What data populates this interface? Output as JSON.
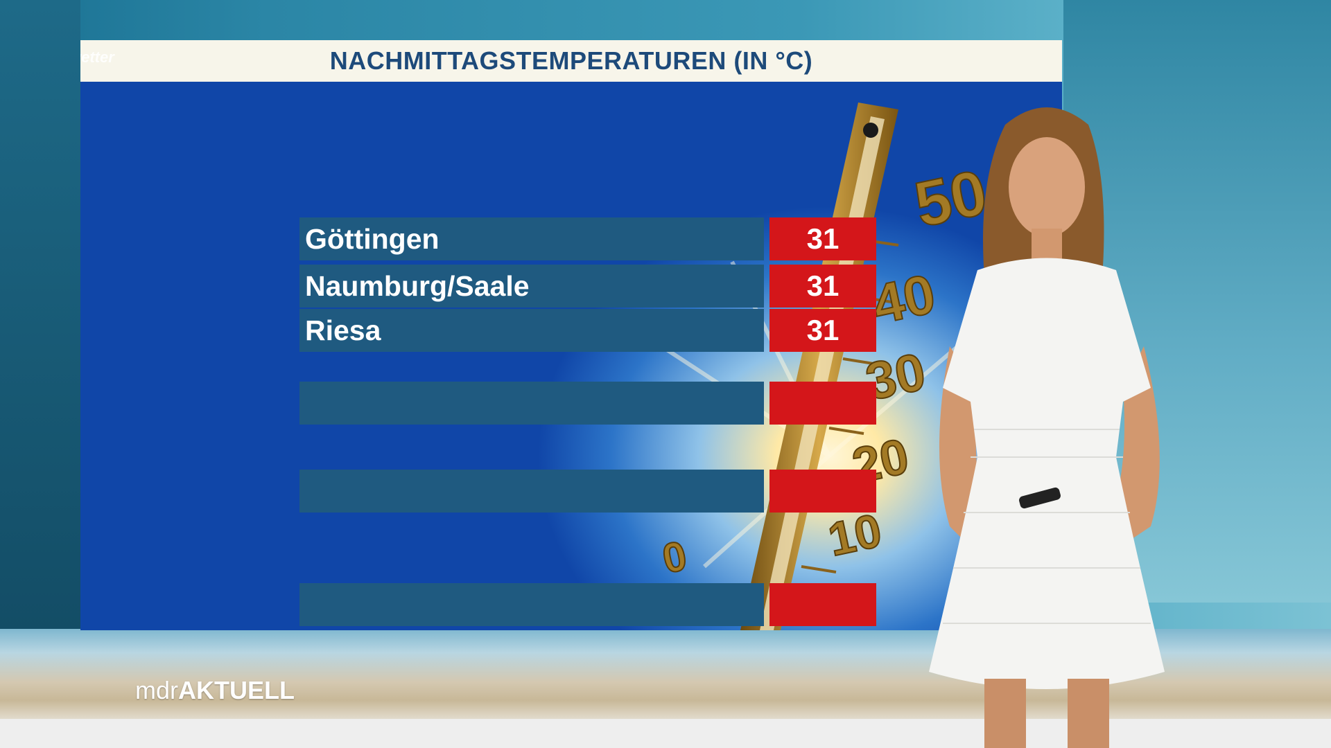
{
  "screen": {
    "title": "NACHMITTAGSTEMPERATUREN (IN °C)",
    "corner_logo": "wetter"
  },
  "thermometer": {
    "scale_labels": [
      "50",
      "40",
      "30",
      "20",
      "10",
      "0"
    ]
  },
  "temperatures": [
    {
      "city": "Göttingen",
      "value": "31"
    },
    {
      "city": "Naumburg/Saale",
      "value": "31"
    },
    {
      "city": "Riesa",
      "value": "31"
    },
    {
      "city": "",
      "value": ""
    },
    {
      "city": "",
      "value": ""
    },
    {
      "city": "",
      "value": ""
    }
  ],
  "brand": {
    "part1": "mdr",
    "part2": "AKTUELL"
  },
  "colors": {
    "city_bar": "#1f5a80",
    "value_box": "#d4161a",
    "title_text": "#1d4a7a"
  }
}
